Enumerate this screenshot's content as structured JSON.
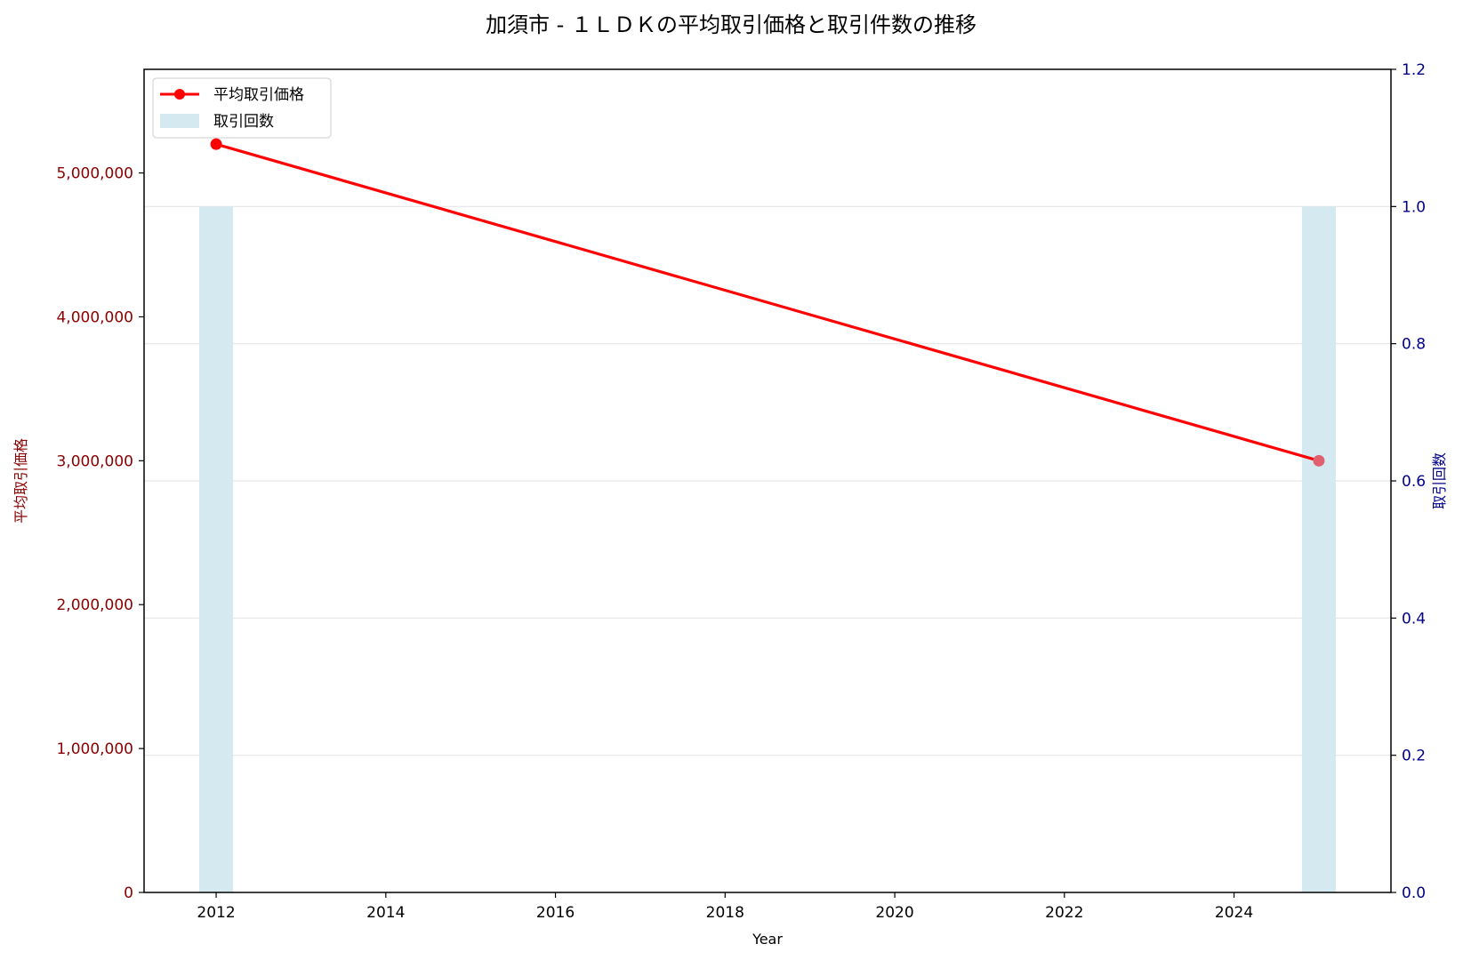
{
  "chart_data": {
    "type": "line",
    "title": "加須市 - １ＬＤＫの平均取引価格と取引件数の推移",
    "xlabel": "Year",
    "ylabel_left": "平均取引価格",
    "ylabel_right": "取引回数",
    "x_ticks": [
      "2012",
      "2014",
      "2016",
      "2018",
      "2020",
      "2022",
      "2024"
    ],
    "xlim": [
      2011.15,
      2025.85
    ],
    "y_left": {
      "lim": [
        0,
        5720000
      ],
      "ticks": [
        0,
        1000000,
        2000000,
        3000000,
        4000000,
        5000000
      ],
      "tick_labels": [
        "0",
        "1,000,000",
        "2,000,000",
        "3,000,000",
        "4,000,000",
        "5,000,000"
      ]
    },
    "y_right": {
      "lim": [
        0,
        1.2
      ],
      "ticks": [
        0,
        0.2,
        0.4,
        0.6,
        0.8,
        1.0,
        1.2
      ],
      "tick_labels": [
        "0.0",
        "0.2",
        "0.4",
        "0.6",
        "0.8",
        "1.0",
        "1.2"
      ]
    },
    "series": [
      {
        "name": "平均取引価格",
        "kind": "line",
        "axis": "left",
        "x": [
          2012,
          2025
        ],
        "values": [
          5200000,
          3000000
        ]
      },
      {
        "name": "取引回数",
        "kind": "bar",
        "axis": "right",
        "x": [
          2012,
          2025
        ],
        "values": [
          1,
          1
        ]
      }
    ],
    "legend_position": "top-left",
    "grid": "horizontal, right axis",
    "colors": {
      "line": "#ff0000",
      "last_point": "#e06070",
      "bar": "#d4eaf0",
      "left_axis": "#8b0000",
      "right_axis": "#00008b",
      "grid": "#e6e6e6"
    }
  }
}
